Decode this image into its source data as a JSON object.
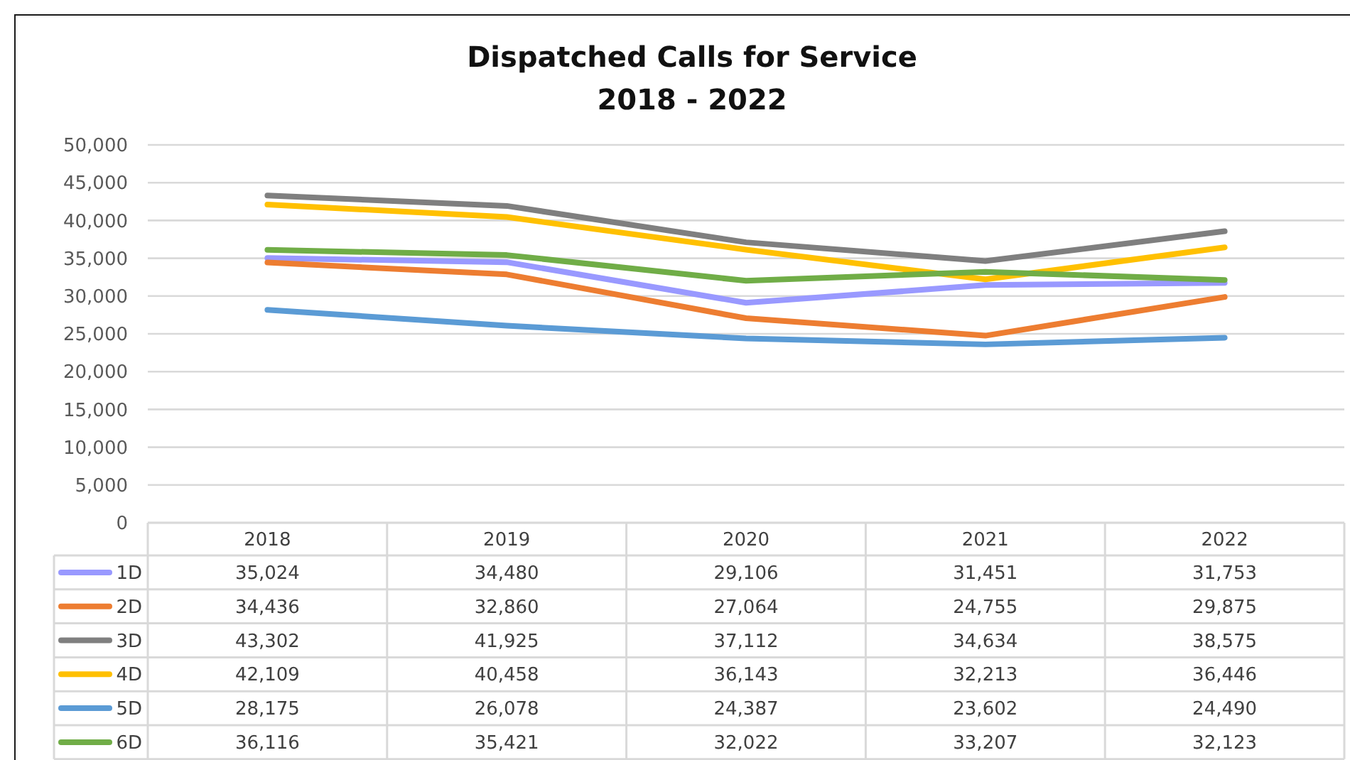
{
  "chart_data": {
    "type": "line",
    "title": "Dispatched Calls for Service",
    "subtitle": "2018 - 2022",
    "categories": [
      "2018",
      "2019",
      "2020",
      "2021",
      "2022"
    ],
    "series": [
      {
        "name": "1D",
        "color": "#9999ff",
        "values": [
          35024,
          34480,
          29106,
          31451,
          31753
        ],
        "value_labels": [
          "35,024",
          "34,480",
          "29,106",
          "31,451",
          "31,753"
        ]
      },
      {
        "name": "2D",
        "color": "#ed7d31",
        "values": [
          34436,
          32860,
          27064,
          24755,
          29875
        ],
        "value_labels": [
          "34,436",
          "32,860",
          "27,064",
          "24,755",
          "29,875"
        ]
      },
      {
        "name": "3D",
        "color": "#7f7f7f",
        "values": [
          43302,
          41925,
          37112,
          34634,
          38575
        ],
        "value_labels": [
          "43,302",
          "41,925",
          "37,112",
          "34,634",
          "38,575"
        ]
      },
      {
        "name": "4D",
        "color": "#ffc000",
        "values": [
          42109,
          40458,
          36143,
          32213,
          36446
        ],
        "value_labels": [
          "42,109",
          "40,458",
          "36,143",
          "32,213",
          "36,446"
        ]
      },
      {
        "name": "5D",
        "color": "#5b9bd5",
        "values": [
          28175,
          26078,
          24387,
          23602,
          24490
        ],
        "value_labels": [
          "28,175",
          "26,078",
          "24,387",
          "23,602",
          "24,490"
        ]
      },
      {
        "name": "6D",
        "color": "#70ad47",
        "values": [
          36116,
          35421,
          32022,
          33207,
          32123
        ],
        "value_labels": [
          "36,116",
          "35,421",
          "32,022",
          "33,207",
          "32,123"
        ]
      }
    ],
    "ylim": [
      0,
      50000
    ],
    "yticks": [
      0,
      {
        "value": 5000,
        "label": "5,000"
      },
      {
        "value": 10000,
        "label": "10,000"
      },
      {
        "value": 15000,
        "label": "15,000"
      },
      {
        "value": 20000,
        "label": "20,000"
      },
      {
        "value": 25000,
        "label": "25,000"
      },
      {
        "value": 30000,
        "label": "30,000"
      },
      {
        "value": 35000,
        "label": "35,000"
      },
      {
        "value": 40000,
        "label": "40,000"
      },
      {
        "value": 45000,
        "label": "45,000"
      },
      {
        "value": 50000,
        "label": "50,000"
      }
    ],
    "grid": "y",
    "legend": "bottom"
  }
}
